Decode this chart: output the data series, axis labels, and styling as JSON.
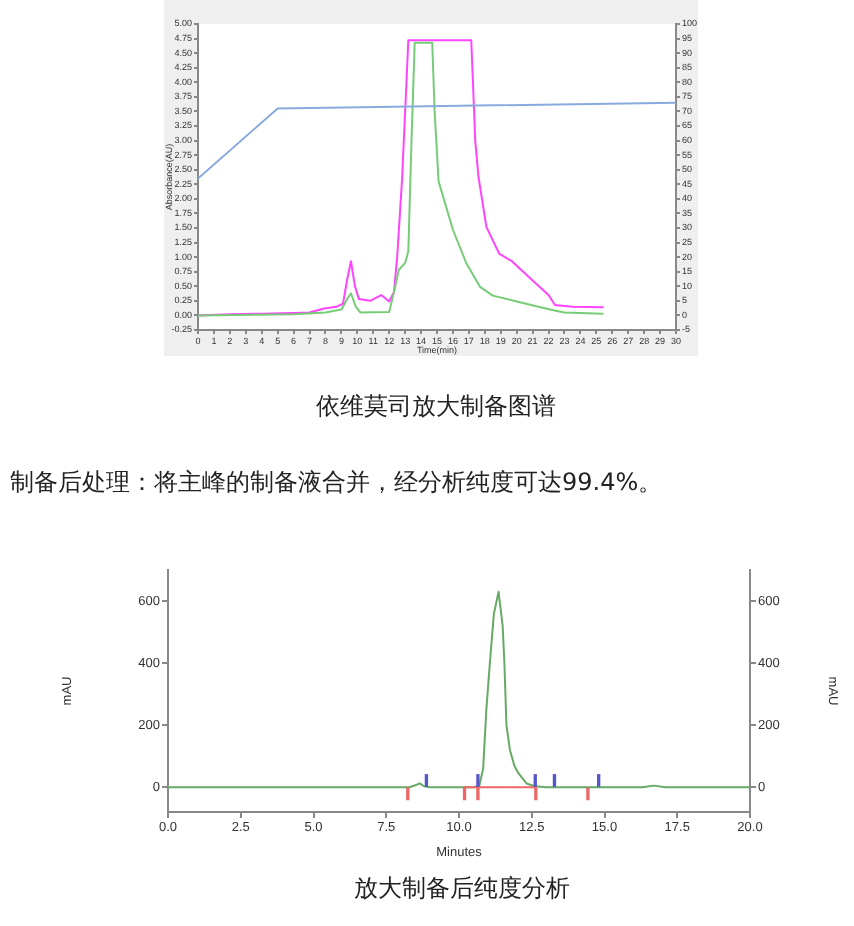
{
  "chart_data": [
    {
      "type": "line",
      "title": "依维莫司放大制备图谱",
      "xlabel": "Time(min)",
      "ylabel": "Absorbance(AU)",
      "annotations": [
        "制备后处理：将主峰的制备液合并，经分析纯度可达99.4%。"
      ],
      "xlim": [
        0,
        30
      ],
      "xticks": [
        0,
        1,
        2,
        3,
        4,
        5,
        6,
        7,
        8,
        9,
        10,
        11,
        12,
        13,
        14,
        15,
        16,
        17,
        18,
        19,
        20,
        21,
        22,
        23,
        24,
        25,
        26,
        27,
        28,
        29,
        30
      ],
      "ylim": [
        -0.25,
        5
      ],
      "yticks": [
        -0.25,
        {
          "value": 0,
          "label": "0.00"
        },
        0.25,
        {
          "value": 0.5,
          "label": "0.50"
        },
        0.75,
        {
          "value": 1,
          "label": "1.00"
        },
        1.25,
        {
          "value": 1.5,
          "label": "1.50"
        },
        1.75,
        {
          "value": 2,
          "label": "2.00"
        },
        2.25,
        {
          "value": 2.5,
          "label": "2.50"
        },
        2.75,
        {
          "value": 3,
          "label": "3.00"
        },
        3.25,
        {
          "value": 3.5,
          "label": "3.50"
        },
        3.75,
        {
          "value": 4,
          "label": "4.00"
        },
        4.25,
        {
          "value": 4.5,
          "label": "4.50"
        },
        4.75,
        {
          "value": 5,
          "label": "5.00"
        }
      ],
      "y2lim": [
        -5,
        100
      ],
      "y2ticks": [
        -5,
        0,
        5,
        10,
        15,
        20,
        25,
        30,
        35,
        40,
        45,
        50,
        55,
        60,
        65,
        70,
        75,
        80,
        85,
        90,
        95,
        100
      ],
      "series": [
        {
          "color": "#ff44ff",
          "x": [
            0,
            2,
            4,
            6,
            7,
            7.9,
            8.7,
            9.1,
            9.35,
            9.6,
            9.85,
            10.1,
            10.8,
            11.5,
            12.0,
            12.3,
            12.5,
            12.8,
            13.0,
            13.2,
            17.15,
            17.4,
            17.6,
            18.1,
            18.9,
            19.7,
            21.0,
            22.0,
            22.4,
            23.5,
            25.4
          ],
          "values": [
            0,
            0.02,
            0.03,
            0.04,
            0.05,
            0.12,
            0.15,
            0.2,
            0.6,
            0.93,
            0.5,
            0.28,
            0.25,
            0.35,
            0.24,
            0.4,
            1.0,
            2.3,
            3.5,
            4.72,
            4.72,
            3.0,
            2.38,
            1.52,
            1.06,
            0.93,
            0.6,
            0.35,
            0.18,
            0.15,
            0.14
          ]
        },
        {
          "color": "#77cc77",
          "x": [
            0,
            6,
            8,
            9.0,
            9.4,
            9.6,
            9.9,
            10.2,
            12.0,
            12.3,
            12.6,
            13.0,
            13.2,
            13.4,
            13.6,
            14.7,
            14.85,
            15.1,
            16.0,
            16.85,
            17.7,
            18.5,
            20.0,
            21.5,
            22.3,
            23.0,
            25.4
          ],
          "values": [
            0,
            0.02,
            0.05,
            0.1,
            0.3,
            0.38,
            0.15,
            0.05,
            0.06,
            0.4,
            0.78,
            0.9,
            1.1,
            3.0,
            4.68,
            4.68,
            3.5,
            2.3,
            1.47,
            0.89,
            0.49,
            0.34,
            0.24,
            0.14,
            0.09,
            0.05,
            0.03
          ]
        },
        {
          "color": "#88aadd",
          "axis": "y2",
          "x": [
            0,
            5,
            30
          ],
          "values": [
            47,
            71,
            73
          ]
        }
      ],
      "grid": false,
      "legend": false,
      "marker": "none"
    },
    {
      "type": "line",
      "title": "放大制备后纯度分析",
      "xlabel": "Minutes",
      "ylabel": "mAU",
      "y2label": "mAU",
      "xlim": [
        0,
        20
      ],
      "xticks": [
        {
          "value": 0,
          "label": "0.0"
        },
        2.5,
        {
          "value": 5,
          "label": "5.0"
        },
        7.5,
        {
          "value": 10,
          "label": "10.0"
        },
        12.5,
        {
          "value": 15,
          "label": "15.0"
        },
        17.5,
        {
          "value": 20,
          "label": "20.0"
        }
      ],
      "ylim": [
        -80,
        700
      ],
      "yticks": [
        0,
        200,
        400,
        600
      ],
      "y2lim": [
        -80,
        700
      ],
      "y2ticks": [
        0,
        200,
        400,
        600
      ],
      "series": [
        {
          "color": "#66aa66",
          "x": [
            0,
            8.3,
            8.55,
            8.65,
            8.8,
            9,
            10.5,
            10.7,
            10.83,
            10.94,
            11.06,
            11.2,
            11.36,
            11.5,
            11.56,
            11.63,
            11.75,
            11.9,
            12.04,
            12.32,
            12.6,
            13,
            16.3,
            16.7,
            17.1,
            20
          ],
          "values": [
            0,
            0,
            8,
            12,
            3,
            0,
            0,
            5,
            60,
            250,
            400,
            560,
            630,
            520,
            400,
            200,
            120,
            70,
            45,
            12,
            3,
            0,
            0,
            5,
            0,
            0
          ]
        },
        {
          "color": "#ee6666",
          "x": [
            10.19,
            12.64
          ],
          "values": [
            0,
            0
          ]
        },
        {
          "type": "bar",
          "color": "#5555cc",
          "x": [
            8.88,
            10.65,
            12.62,
            13.28,
            14.8
          ],
          "values": [
            40,
            40,
            40,
            40,
            40
          ]
        },
        {
          "type": "bar",
          "color": "#ee6666",
          "x": [
            8.24,
            10.19,
            10.65,
            12.64,
            14.43
          ],
          "values": [
            -40,
            -40,
            -40,
            -40,
            -40
          ]
        }
      ],
      "grid": false,
      "legend": false,
      "marker": "none"
    }
  ]
}
